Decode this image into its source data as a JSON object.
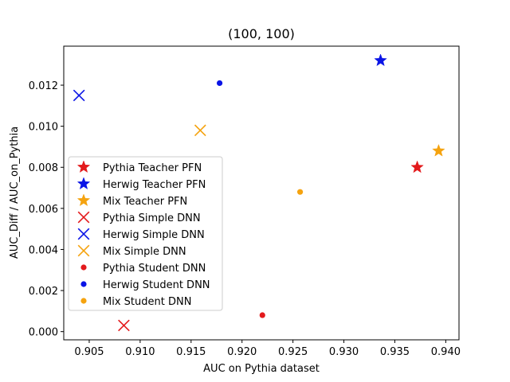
{
  "chart_data": {
    "type": "scatter",
    "title": "(100, 100)",
    "xlabel": "AUC on Pythia dataset",
    "ylabel": "AUC_Diff / AUC_on_Pythia",
    "xlim": [
      0.9025,
      0.9413
    ],
    "ylim": [
      -0.0004,
      0.0139
    ],
    "xticks": [
      0.905,
      0.91,
      0.915,
      0.92,
      0.925,
      0.93,
      0.935,
      0.94
    ],
    "xtick_labels": [
      "0.905",
      "0.910",
      "0.915",
      "0.920",
      "0.925",
      "0.930",
      "0.935",
      "0.940"
    ],
    "yticks": [
      0.0,
      0.002,
      0.004,
      0.006,
      0.008,
      0.01,
      0.012
    ],
    "ytick_labels": [
      "0.000",
      "0.002",
      "0.004",
      "0.006",
      "0.008",
      "0.010",
      "0.012"
    ],
    "grid": false,
    "legend_position": "center-left",
    "series": [
      {
        "name": "Pythia Teacher PFN",
        "marker": "star",
        "color": "#e31a1c",
        "points": [
          [
            0.9372,
            0.008
          ]
        ]
      },
      {
        "name": "Herwig Teacher PFN",
        "marker": "star",
        "color": "#0a14e6",
        "points": [
          [
            0.9336,
            0.0132
          ]
        ]
      },
      {
        "name": "Mix Teacher PFN",
        "marker": "star",
        "color": "#f5a30f",
        "points": [
          [
            0.9393,
            0.0088
          ]
        ]
      },
      {
        "name": "Pythia Simple DNN",
        "marker": "x",
        "color": "#e31a1c",
        "points": [
          [
            0.9084,
            0.0003
          ]
        ]
      },
      {
        "name": "Herwig Simple DNN",
        "marker": "x",
        "color": "#0a14e6",
        "points": [
          [
            0.904,
            0.0115
          ]
        ]
      },
      {
        "name": "Mix Simple DNN",
        "marker": "x",
        "color": "#f5a30f",
        "points": [
          [
            0.9159,
            0.0098
          ]
        ]
      },
      {
        "name": "Pythia Student DNN",
        "marker": "dot",
        "color": "#e31a1c",
        "points": [
          [
            0.922,
            0.0008
          ]
        ]
      },
      {
        "name": "Herwig Student DNN",
        "marker": "dot",
        "color": "#0a14e6",
        "points": [
          [
            0.9178,
            0.0121
          ]
        ]
      },
      {
        "name": "Mix Student DNN",
        "marker": "dot",
        "color": "#f5a30f",
        "points": [
          [
            0.9257,
            0.0068
          ]
        ]
      }
    ]
  }
}
